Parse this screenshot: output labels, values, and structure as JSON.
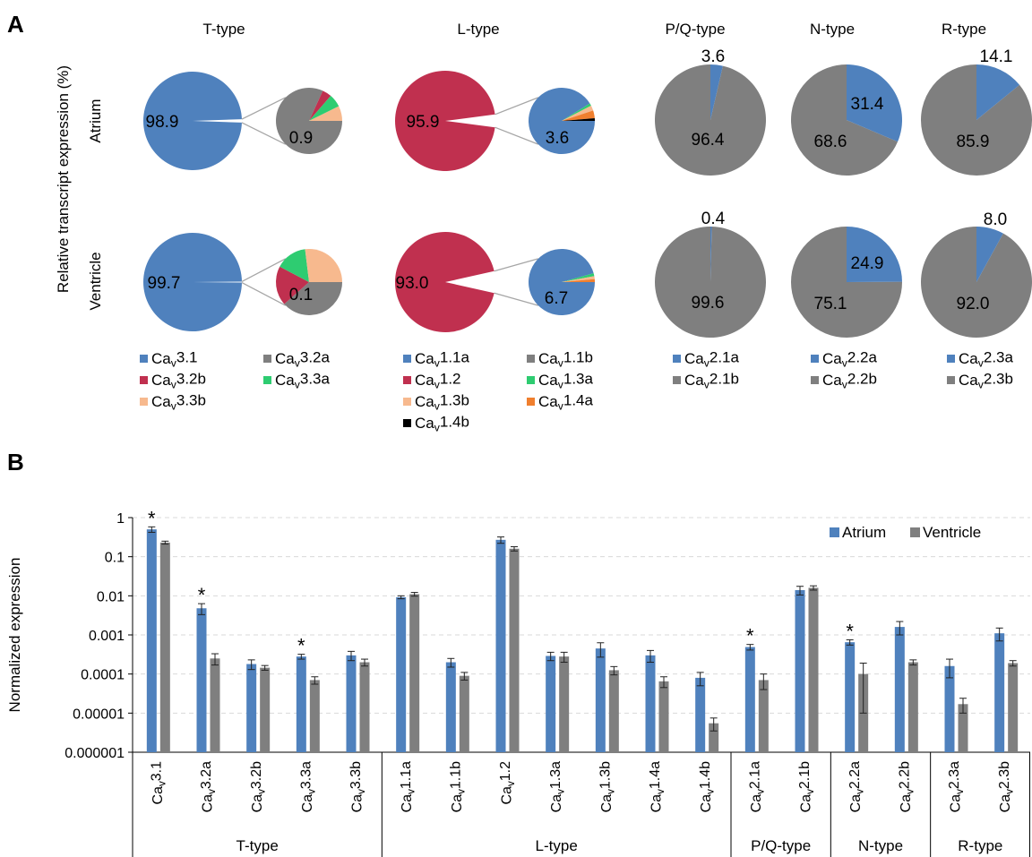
{
  "panelA": {
    "label": "A",
    "y_title": "Relative transcript expression (%)",
    "row_labels": [
      "Atrium",
      "Ventricle"
    ],
    "colors": {
      "blue": "#4f81bd",
      "gray": "#7f7f7f",
      "crimson": "#c0304f",
      "green": "#2ecc71",
      "peach": "#f7b98e",
      "orange": "#f07f2e",
      "black": "#000000"
    },
    "groups": [
      {
        "title": "T-type",
        "legend": [
          {
            "label": "Cav3.1",
            "color": "#4f81bd"
          },
          {
            "label": "Cav3.2a",
            "color": "#7f7f7f"
          },
          {
            "label": "Cav3.2b",
            "color": "#c0304f"
          },
          {
            "label": "Cav3.3a",
            "color": "#2ecc71"
          },
          {
            "label": "Cav3.3b",
            "color": "#f7b98e"
          }
        ]
      },
      {
        "title": "L-type",
        "legend": [
          {
            "label": "Cav1.1a",
            "color": "#4f81bd"
          },
          {
            "label": "Cav1.1b",
            "color": "#7f7f7f"
          },
          {
            "label": "Cav1.2",
            "color": "#c0304f"
          },
          {
            "label": "Cav1.3a",
            "color": "#2ecc71"
          },
          {
            "label": "Cav1.3b",
            "color": "#f7b98e"
          },
          {
            "label": "Cav1.4a",
            "color": "#f07f2e"
          },
          {
            "label": "Cav1.4b",
            "color": "#000000"
          }
        ]
      },
      {
        "title": "P/Q-type",
        "legend": [
          {
            "label": "Cav2.1a",
            "color": "#4f81bd"
          },
          {
            "label": "Cav2.1b",
            "color": "#7f7f7f"
          }
        ]
      },
      {
        "title": "N-type",
        "legend": [
          {
            "label": "Cav2.2a",
            "color": "#4f81bd"
          },
          {
            "label": "Cav2.2b",
            "color": "#7f7f7f"
          }
        ]
      },
      {
        "title": "R-type",
        "legend": [
          {
            "label": "Cav2.3a",
            "color": "#4f81bd"
          },
          {
            "label": "Cav2.3b",
            "color": "#7f7f7f"
          }
        ]
      }
    ],
    "pies": {
      "t_atrium": {
        "big_value": "98.9",
        "small_value": "0.9"
      },
      "t_vent": {
        "big_value": "99.7",
        "small_value": "0.1"
      },
      "l_atrium": {
        "big_value": "95.9",
        "small_value": "3.6"
      },
      "l_vent": {
        "big_value": "93.0",
        "small_value": "6.7"
      },
      "pq_atrium": {
        "a_value": "3.6",
        "b_value": "96.4"
      },
      "pq_vent": {
        "a_value": "0.4",
        "b_value": "99.6"
      },
      "n_atrium": {
        "a_value": "31.4",
        "b_value": "68.6"
      },
      "n_vent": {
        "a_value": "24.9",
        "b_value": "75.1"
      },
      "r_atrium": {
        "a_value": "14.1",
        "b_value": "85.9"
      },
      "r_vent": {
        "a_value": "8.0",
        "b_value": "92.0"
      }
    }
  },
  "chart_data": [
    {
      "type": "pie",
      "panel": "A",
      "charts": [
        {
          "group": "T-type",
          "row": "Atrium",
          "slices": [
            {
              "name": "Cav3.1",
              "value": 98.9
            },
            {
              "name": "other",
              "value": 1.1
            }
          ],
          "inset": [
            {
              "name": "Cav3.2a",
              "value": 0.9
            },
            {
              "name": "Cav3.2b",
              "value": 0.05
            },
            {
              "name": "Cav3.3a",
              "value": 0.07
            },
            {
              "name": "Cav3.3b",
              "value": 0.08
            }
          ]
        },
        {
          "group": "T-type",
          "row": "Ventricle",
          "slices": [
            {
              "name": "Cav3.1",
              "value": 99.7
            },
            {
              "name": "other",
              "value": 0.3
            }
          ],
          "inset": [
            {
              "name": "Cav3.2a",
              "value": 0.1
            },
            {
              "name": "Cav3.2b",
              "value": 0.05
            },
            {
              "name": "Cav3.3a",
              "value": 0.04
            },
            {
              "name": "Cav3.3b",
              "value": 0.07
            }
          ]
        },
        {
          "group": "L-type",
          "row": "Atrium",
          "slices": [
            {
              "name": "Cav1.2",
              "value": 95.9
            },
            {
              "name": "other",
              "value": 4.1
            }
          ],
          "inset": [
            {
              "name": "Cav1.1a",
              "value": 3.6
            },
            {
              "name": "Cav1.3a",
              "value": 0.05
            },
            {
              "name": "Cav1.3b",
              "value": 0.1
            },
            {
              "name": "Cav1.4a",
              "value": 0.15
            },
            {
              "name": "Cav1.4b",
              "value": 0.05
            }
          ]
        },
        {
          "group": "L-type",
          "row": "Ventricle",
          "slices": [
            {
              "name": "Cav1.2",
              "value": 93.0
            },
            {
              "name": "other",
              "value": 7.0
            }
          ],
          "inset": [
            {
              "name": "Cav1.1a",
              "value": 6.7
            },
            {
              "name": "Cav1.3a",
              "value": 0.1
            },
            {
              "name": "Cav1.3b",
              "value": 0.1
            },
            {
              "name": "Cav1.4a",
              "value": 0.1
            }
          ]
        },
        {
          "group": "P/Q-type",
          "row": "Atrium",
          "slices": [
            {
              "name": "Cav2.1a",
              "value": 3.6
            },
            {
              "name": "Cav2.1b",
              "value": 96.4
            }
          ]
        },
        {
          "group": "P/Q-type",
          "row": "Ventricle",
          "slices": [
            {
              "name": "Cav2.1a",
              "value": 0.4
            },
            {
              "name": "Cav2.1b",
              "value": 99.6
            }
          ]
        },
        {
          "group": "N-type",
          "row": "Atrium",
          "slices": [
            {
              "name": "Cav2.2a",
              "value": 31.4
            },
            {
              "name": "Cav2.2b",
              "value": 68.6
            }
          ]
        },
        {
          "group": "N-type",
          "row": "Ventricle",
          "slices": [
            {
              "name": "Cav2.2a",
              "value": 24.9
            },
            {
              "name": "Cav2.2b",
              "value": 75.1
            }
          ]
        },
        {
          "group": "R-type",
          "row": "Atrium",
          "slices": [
            {
              "name": "Cav2.3a",
              "value": 14.1
            },
            {
              "name": "Cav2.3b",
              "value": 85.9
            }
          ]
        },
        {
          "group": "R-type",
          "row": "Ventricle",
          "slices": [
            {
              "name": "Cav2.3a",
              "value": 8.0
            },
            {
              "name": "Cav2.3b",
              "value": 92.0
            }
          ]
        }
      ]
    },
    {
      "type": "bar",
      "panel": "B",
      "label": "B",
      "ylabel": "Normalized expression",
      "yscale": "log",
      "ylim": [
        1e-06,
        1
      ],
      "yticks": [
        "1",
        "0.1",
        "0.01",
        "0.001",
        "0.0001",
        "0.00001",
        "0.000001"
      ],
      "grid": true,
      "legend": "top-right",
      "series": [
        {
          "name": "Atrium",
          "color": "#4f81bd"
        },
        {
          "name": "Ventricle",
          "color": "#7f7f7f"
        }
      ],
      "categories": [
        "Cav3.1",
        "Cav3.2a",
        "Cav3.2b",
        "Cav3.3a",
        "Cav3.3b",
        "Cav1.1a",
        "Cav1.1b",
        "Cav1.2",
        "Cav1.3a",
        "Cav1.3b",
        "Cav1.4a",
        "Cav1.4b",
        "Cav2.1a",
        "Cav2.1b",
        "Cav2.2a",
        "Cav2.2b",
        "Cav2.3a",
        "Cav2.3b"
      ],
      "groups": [
        {
          "name": "T-type",
          "count": 5
        },
        {
          "name": "L-type",
          "count": 7
        },
        {
          "name": "P/Q-type",
          "count": 2
        },
        {
          "name": "N-type",
          "count": 2
        },
        {
          "name": "R-type",
          "count": 2
        }
      ],
      "atrium": [
        0.5,
        0.0048,
        0.00018,
        0.00028,
        0.0003,
        0.0092,
        0.0002,
        0.27,
        0.00029,
        0.00045,
        0.0003,
        8e-05,
        0.00049,
        0.014,
        0.00065,
        0.0016,
        0.00016,
        0.0011
      ],
      "atrium_err": [
        0.08,
        0.0015,
        5e-05,
        4e-05,
        8e-05,
        0.0008,
        5e-05,
        0.05,
        7e-05,
        0.00018,
        0.0001,
        3e-05,
        8e-05,
        0.0035,
        0.0001,
        0.0006,
        8e-05,
        0.0004
      ],
      "ventricle": [
        0.23,
        0.00025,
        0.000145,
        7e-05,
        0.0002,
        0.011,
        9e-05,
        0.16,
        0.00028,
        0.000125,
        6.5e-05,
        5.5e-06,
        7e-05,
        0.016,
        0.0001,
        0.0002,
        1.7e-05,
        0.00019
      ],
      "ventricle_err": [
        0.02,
        8e-05,
        2e-05,
        1.5e-05,
        4e-05,
        0.0012,
        2e-05,
        0.02,
        8e-05,
        3e-05,
        2e-05,
        2e-06,
        3e-05,
        0.002,
        9e-05,
        3e-05,
        7e-06,
        3e-05
      ],
      "significant": [
        "Cav3.1",
        "Cav3.2a",
        "Cav3.3a",
        "Cav2.1a",
        "Cav2.2a"
      ],
      "significance_marker": "*"
    }
  ]
}
